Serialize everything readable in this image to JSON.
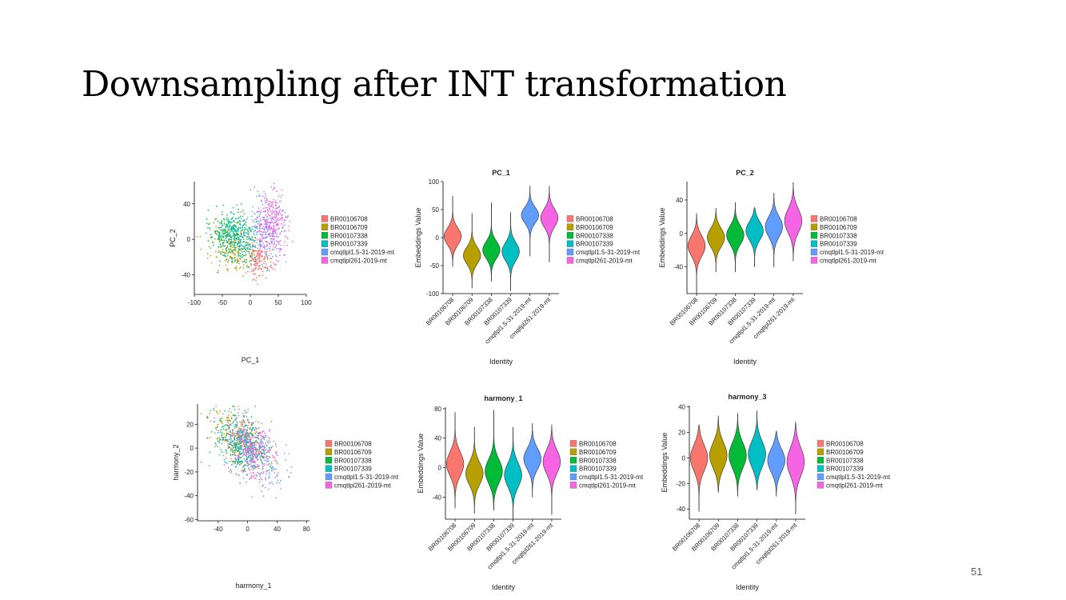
{
  "slide": {
    "title": "Downsampling after INT transformation",
    "page_number": "51"
  },
  "colors": {
    "BR00106708": "#F8766D",
    "BR00106709": "#B79F00",
    "BR00107338": "#00BA38",
    "BR00107339": "#00BFC4",
    "cmqtlpl1.5-31-2019-mt": "#619CFF",
    "cmqtlpl261-2019-mt": "#F564E3"
  },
  "chart_data": [
    {
      "type": "scatter",
      "title": "",
      "xlabel": "PC_1",
      "ylabel": "PC_2",
      "xlim": [
        -100,
        100
      ],
      "ylim": [
        -62,
        65
      ],
      "xticks": [
        -100,
        -50,
        0,
        50,
        100
      ],
      "yticks": [
        -40,
        0,
        40
      ],
      "grid": false,
      "legend": "right",
      "series": [
        {
          "name": "BR00106708",
          "center": [
            15,
            -22
          ],
          "spread": [
            12,
            11
          ],
          "n": 160
        },
        {
          "name": "BR00106709",
          "center": [
            -35,
            -8
          ],
          "spread": [
            22,
            14
          ],
          "n": 200
        },
        {
          "name": "BR00107338",
          "center": [
            -30,
            5
          ],
          "spread": [
            20,
            14
          ],
          "n": 220
        },
        {
          "name": "BR00107339",
          "center": [
            -25,
            2
          ],
          "spread": [
            20,
            14
          ],
          "n": 220
        },
        {
          "name": "cmqtlpl1.5-31-2019-mt",
          "center": [
            32,
            10
          ],
          "spread": [
            16,
            20
          ],
          "n": 180
        },
        {
          "name": "cmqtlpl261-2019-mt",
          "center": [
            38,
            18
          ],
          "spread": [
            14,
            18
          ],
          "n": 260
        }
      ]
    },
    {
      "type": "violin",
      "title": "PC_1",
      "xlabel": "Identity",
      "ylabel": "Embeddings Value",
      "ylim": [
        -100,
        100
      ],
      "yticks": [
        -100,
        -50,
        0,
        50,
        100
      ],
      "legend": "right",
      "categories": [
        "BR00106708",
        "BR00106709",
        "BR00107338",
        "BR00107339",
        "cmqtlpl1.5-31-2019-mt",
        "cmqtlpl261-2019-mt"
      ],
      "violins": [
        {
          "min": -52,
          "max": 74,
          "center": 2,
          "sd": 15
        },
        {
          "min": -90,
          "max": 43,
          "center": -32,
          "sd": 15
        },
        {
          "min": -78,
          "max": 62,
          "center": -22,
          "sd": 15
        },
        {
          "min": -95,
          "max": 45,
          "center": -25,
          "sd": 16
        },
        {
          "min": -33,
          "max": 92,
          "center": 40,
          "sd": 14
        },
        {
          "min": -44,
          "max": 92,
          "center": 35,
          "sd": 16
        }
      ]
    },
    {
      "type": "violin",
      "title": "PC_2",
      "xlabel": "Identity",
      "ylabel": "Embeddings Value",
      "ylim": [
        -72,
        62
      ],
      "yticks": [
        -40,
        0,
        40
      ],
      "legend": "right",
      "categories": [
        "BR00106708",
        "BR00106709",
        "BR00107338",
        "BR00107339",
        "cmqtlpl1.5-31-2019-mt",
        "cmqtlpl261-2019-mt"
      ],
      "violins": [
        {
          "min": -72,
          "max": 24,
          "center": -15,
          "sd": 12
        },
        {
          "min": -46,
          "max": 30,
          "center": -5,
          "sd": 11
        },
        {
          "min": -46,
          "max": 37,
          "center": -2,
          "sd": 11
        },
        {
          "min": -40,
          "max": 31,
          "center": 3,
          "sd": 11
        },
        {
          "min": -40,
          "max": 48,
          "center": 8,
          "sd": 12
        },
        {
          "min": -33,
          "max": 61,
          "center": 15,
          "sd": 14
        }
      ]
    },
    {
      "type": "scatter",
      "title": "",
      "xlabel": "harmony_1",
      "ylabel": "harmony_2",
      "xlim": [
        -68,
        84
      ],
      "ylim": [
        -61,
        37
      ],
      "xticks": [
        -40,
        0,
        40,
        80
      ],
      "yticks": [
        -60,
        -40,
        -20,
        0,
        20
      ],
      "grid": false,
      "legend": "right",
      "series": [
        {
          "name": "BR00106708",
          "center": [
            5,
            0
          ],
          "spread": [
            18,
            12
          ],
          "n": 150
        },
        {
          "name": "BR00106709",
          "center": [
            -15,
            8
          ],
          "spread": [
            18,
            12
          ],
          "n": 180
        },
        {
          "name": "BR00107338",
          "center": [
            -10,
            5
          ],
          "spread": [
            18,
            12
          ],
          "n": 200
        },
        {
          "name": "BR00107339",
          "center": [
            -8,
            3
          ],
          "spread": [
            18,
            12
          ],
          "n": 200
        },
        {
          "name": "cmqtlpl1.5-31-2019-mt",
          "center": [
            10,
            -5
          ],
          "spread": [
            18,
            12
          ],
          "n": 180
        },
        {
          "name": "cmqtlpl261-2019-mt",
          "center": [
            5,
            -2
          ],
          "spread": [
            16,
            12
          ],
          "n": 240
        }
      ]
    },
    {
      "type": "violin",
      "title": "harmony_1",
      "xlabel": "Identity",
      "ylabel": "Embeddings Value",
      "ylim": [
        -70,
        82
      ],
      "yticks": [
        -40,
        0,
        40,
        80
      ],
      "legend": "right",
      "categories": [
        "BR00106708",
        "BR00106709",
        "BR00107338",
        "BR00107339",
        "cmqtlpl1.5-31-2019-mt",
        "cmqtlpl261-2019-mt"
      ],
      "violins": [
        {
          "min": -55,
          "max": 75,
          "center": 5,
          "sd": 16
        },
        {
          "min": -62,
          "max": 55,
          "center": -8,
          "sd": 15
        },
        {
          "min": -58,
          "max": 78,
          "center": -5,
          "sd": 16
        },
        {
          "min": -70,
          "max": 55,
          "center": -10,
          "sd": 16
        },
        {
          "min": -40,
          "max": 60,
          "center": 12,
          "sd": 14
        },
        {
          "min": -64,
          "max": 58,
          "center": 8,
          "sd": 16
        }
      ]
    },
    {
      "type": "violin",
      "title": "harmony_3",
      "xlabel": "Identity",
      "ylabel": "Embeddings Value",
      "ylim": [
        -48,
        41
      ],
      "yticks": [
        -40,
        -20,
        0,
        20,
        40
      ],
      "legend": "right",
      "categories": [
        "BR00106708",
        "BR00106709",
        "BR00107338",
        "BR00107339",
        "cmqtlpl1.5-31-2019-mt",
        "cmqtlpl261-2019-mt"
      ],
      "violins": [
        {
          "min": -42,
          "max": 26,
          "center": 0,
          "sd": 10
        },
        {
          "min": -27,
          "max": 33,
          "center": 2,
          "sd": 10
        },
        {
          "min": -30,
          "max": 35,
          "center": 2,
          "sd": 10
        },
        {
          "min": -25,
          "max": 37,
          "center": 3,
          "sd": 10
        },
        {
          "min": -30,
          "max": 21,
          "center": -2,
          "sd": 9
        },
        {
          "min": -44,
          "max": 28,
          "center": -3,
          "sd": 11
        }
      ]
    }
  ]
}
